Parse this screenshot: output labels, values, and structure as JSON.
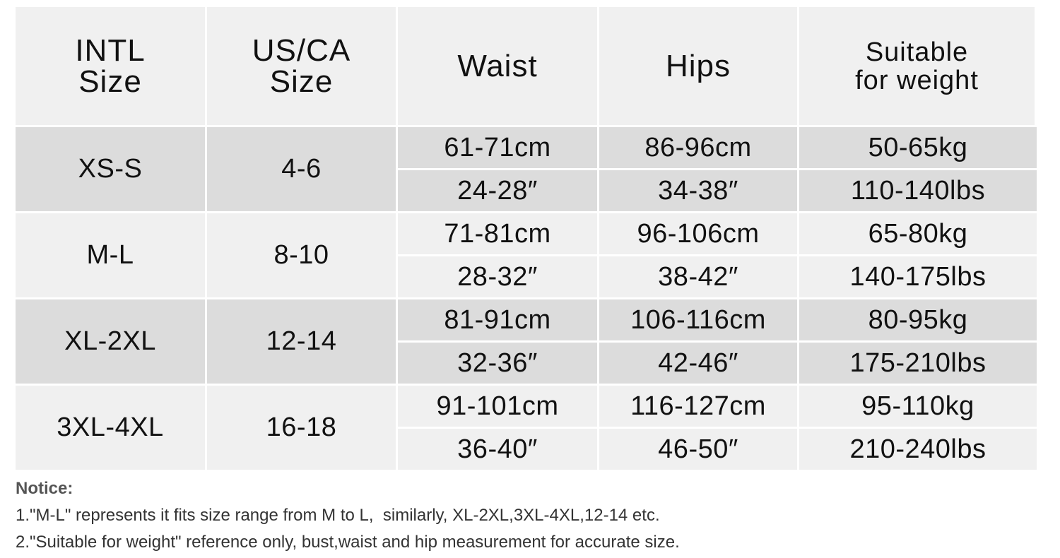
{
  "table": {
    "header": [
      [
        "INTL",
        "Size"
      ],
      [
        "US/CA",
        "Size"
      ],
      [
        "Waist"
      ],
      [
        "Hips"
      ],
      [
        "Suitable",
        "for weight"
      ]
    ],
    "groups": [
      {
        "intl": "XS-S",
        "us": "4-6",
        "rows": [
          [
            "61-71cm",
            "86-96cm",
            "50-65kg"
          ],
          [
            "24-28″",
            "34-38″",
            "110-140lbs"
          ]
        ]
      },
      {
        "intl": "M-L",
        "us": "8-10",
        "rows": [
          [
            "71-81cm",
            "96-106cm",
            "65-80kg"
          ],
          [
            "28-32″",
            "38-42″",
            "140-175lbs"
          ]
        ]
      },
      {
        "intl": "XL-2XL",
        "us": "12-14",
        "rows": [
          [
            "81-91cm",
            "106-116cm",
            "80-95kg"
          ],
          [
            "32-36″",
            "42-46″",
            "175-210lbs"
          ]
        ]
      },
      {
        "intl": "3XL-4XL",
        "us": "16-18",
        "rows": [
          [
            "91-101cm",
            "116-127cm",
            "95-110kg"
          ],
          [
            "36-40″",
            "46-50″",
            "210-240lbs"
          ]
        ]
      }
    ]
  },
  "notice": {
    "title": "Notice:",
    "lines": [
      "1.\"M-L\" represents it fits size range from M to L,  similarly, XL-2XL,3XL-4XL,12-14 etc.",
      "2.\"Suitable for weight\" reference only, bust,waist and hip measurement for accurate size."
    ]
  }
}
